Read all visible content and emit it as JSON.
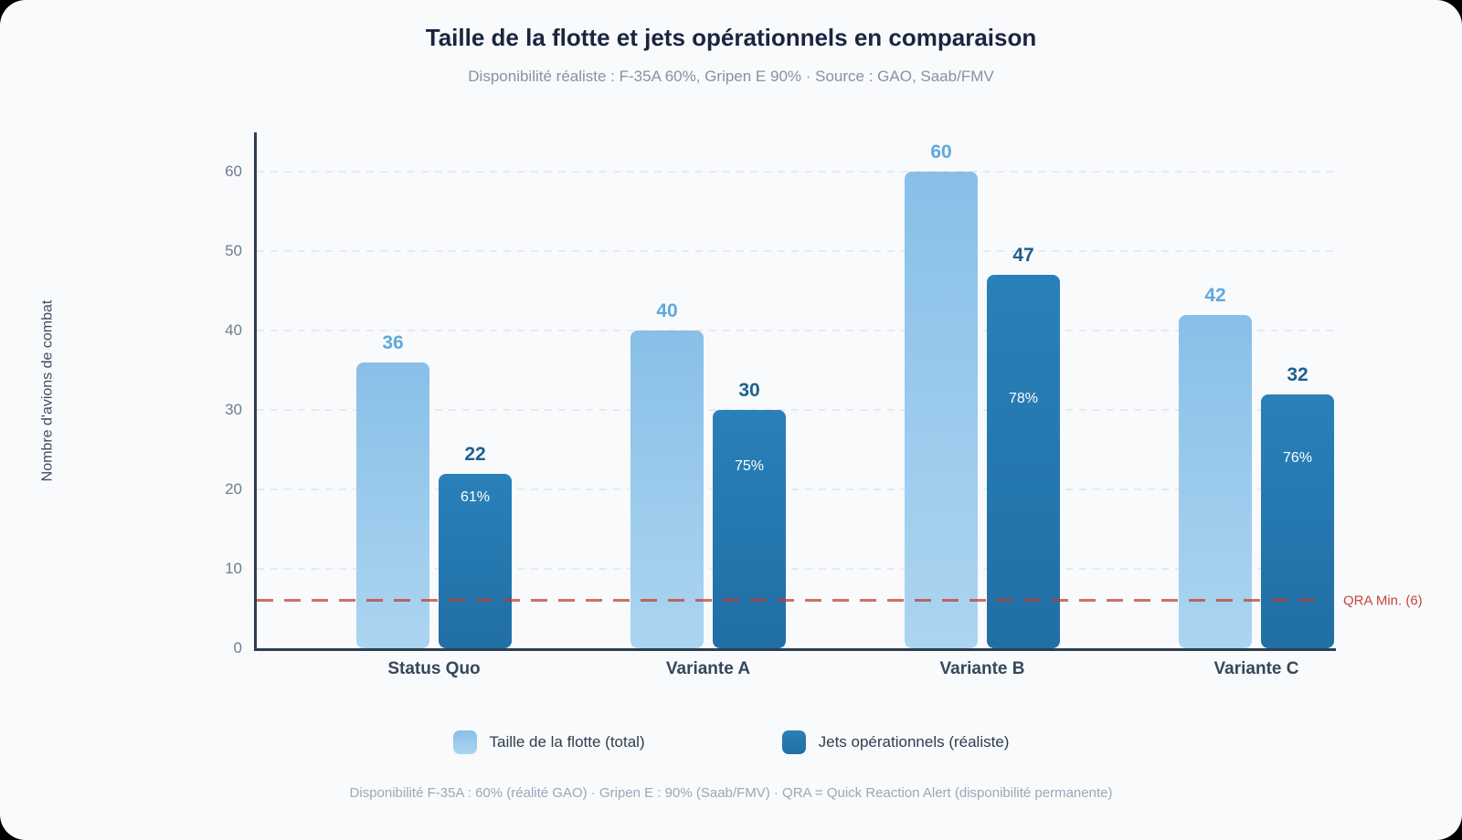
{
  "title": "Taille de la flotte et jets opérationnels en comparaison",
  "subtitle": "Disponibilité réaliste : F-35A 60%, Gripen E 90% · Source : GAO, Saab/FMV",
  "y_axis_label": "Nombre d'avions de combat",
  "footnote": "Disponibilité F-35A : 60% (réalité GAO) · Gripen E : 90% (Saab/FMV) · QRA = Quick Reaction Alert (disponibilité permanente)",
  "chart_data": {
    "type": "bar",
    "title": "Taille de la flotte et jets opérationnels en comparaison",
    "subtitle": "Disponibilité réaliste : F-35A 60%, Gripen E 90% · Source : GAO, Saab/FMV",
    "categories": [
      "Status Quo",
      "Variante A",
      "Variante B",
      "Variante C"
    ],
    "series": [
      {
        "id": "fleet-total",
        "name": "Taille de la flotte (total)",
        "values": [
          36,
          40,
          60,
          42
        ],
        "color_top": "#89BFE7",
        "color_bottom": "#ABD5F1",
        "value_label_color": "#5FA9DE"
      },
      {
        "id": "jets-operational",
        "name": "Jets opérationnels (réaliste)",
        "values": [
          22,
          30,
          47,
          32
        ],
        "bar_labels": [
          "61%",
          "75%",
          "78%",
          "76%"
        ],
        "color_top": "#2A80B9",
        "color_bottom": "#206FA5",
        "value_label_color": "#1F618D"
      }
    ],
    "xlabel": "",
    "ylabel": "Nombre d'avions de combat",
    "ylim": [
      0,
      65
    ],
    "yticks": [
      0,
      10,
      20,
      30,
      40,
      50,
      60
    ],
    "grid": "horizontal-dashed",
    "legend_position": "bottom",
    "reference_line": {
      "value": 6,
      "label": "QRA Min. (6)",
      "color": "#C0392B"
    }
  },
  "colors": {
    "card_background": "#F8FAFC",
    "axis": "#2E3E52",
    "gridline": "#E7EAEE",
    "tick_label": "#6F7D8E",
    "title": "#1B2540",
    "subtitle": "#8792A3",
    "footnote": "#9CA7B8",
    "reference_line": "#C0392B"
  }
}
